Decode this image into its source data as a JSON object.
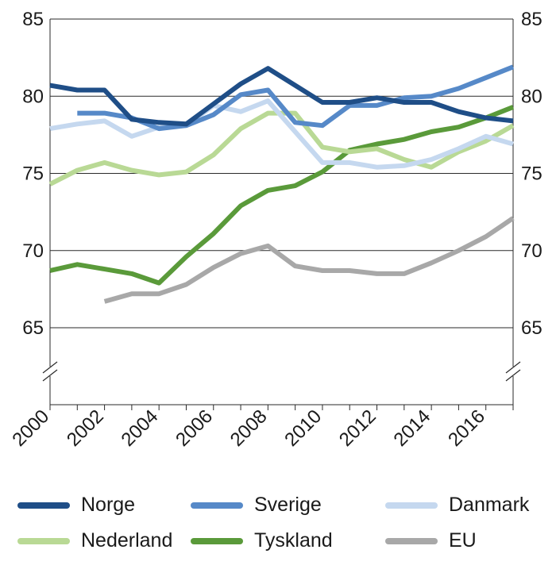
{
  "chart_data": {
    "type": "line",
    "title": "",
    "xlabel": "",
    "ylabel": "",
    "xlim": [
      2000,
      2017
    ],
    "ylim": [
      60,
      85
    ],
    "y_axis_break": true,
    "y_ticks": [
      65,
      70,
      75,
      80,
      85
    ],
    "x_ticks": [
      2000,
      2002,
      2004,
      2006,
      2008,
      2010,
      2012,
      2014,
      2016
    ],
    "grid": true,
    "legend_position": "bottom",
    "series": [
      {
        "name": "Norge",
        "color": "#1f4e87",
        "x": [
          2000,
          2001,
          2002,
          2003,
          2004,
          2005,
          2006,
          2007,
          2008,
          2009,
          2010,
          2011,
          2012,
          2013,
          2014,
          2015,
          2016,
          2017
        ],
        "y": [
          80.7,
          80.4,
          80.4,
          78.5,
          78.3,
          78.2,
          79.5,
          80.8,
          81.8,
          80.7,
          79.6,
          79.6,
          79.9,
          79.6,
          79.6,
          79.0,
          78.6,
          78.4
        ]
      },
      {
        "name": "Sverige",
        "color": "#5689c8",
        "x": [
          2001,
          2002,
          2003,
          2004,
          2005,
          2006,
          2007,
          2008,
          2009,
          2010,
          2011,
          2012,
          2013,
          2014,
          2015,
          2016,
          2017
        ],
        "y": [
          78.9,
          78.9,
          78.6,
          77.9,
          78.1,
          78.8,
          80.1,
          80.4,
          78.3,
          78.1,
          79.4,
          79.4,
          79.9,
          80.0,
          80.5,
          81.2,
          81.9
        ]
      },
      {
        "name": "Danmark",
        "color": "#c5d8ef",
        "x": [
          2000,
          2001,
          2002,
          2003,
          2004,
          2005,
          2006,
          2007,
          2008,
          2009,
          2010,
          2011,
          2012,
          2013,
          2014,
          2015,
          2016,
          2017
        ],
        "y": [
          77.9,
          78.2,
          78.4,
          77.4,
          78.0,
          78.1,
          79.4,
          79.0,
          79.7,
          77.7,
          75.7,
          75.7,
          75.4,
          75.5,
          75.9,
          76.6,
          77.4,
          76.9
        ]
      },
      {
        "name": "Nederland",
        "color": "#b9d995",
        "x": [
          2000,
          2001,
          2002,
          2003,
          2004,
          2005,
          2006,
          2007,
          2008,
          2009,
          2010,
          2011,
          2012,
          2013,
          2014,
          2015,
          2016,
          2017
        ],
        "y": [
          74.3,
          75.2,
          75.7,
          75.2,
          74.9,
          75.1,
          76.2,
          77.9,
          78.9,
          78.9,
          76.7,
          76.4,
          76.6,
          75.9,
          75.4,
          76.4,
          77.1,
          78.1
        ]
      },
      {
        "name": "Tyskland",
        "color": "#5a9a3a",
        "x": [
          2000,
          2001,
          2002,
          2003,
          2004,
          2005,
          2006,
          2007,
          2008,
          2009,
          2010,
          2011,
          2012,
          2013,
          2014,
          2015,
          2016,
          2017
        ],
        "y": [
          68.7,
          69.1,
          68.8,
          68.5,
          67.9,
          69.6,
          71.1,
          72.9,
          73.9,
          74.2,
          75.1,
          76.5,
          76.9,
          77.2,
          77.7,
          78.0,
          78.6,
          79.3
        ]
      },
      {
        "name": "EU",
        "color": "#a8a8a8",
        "x": [
          2002,
          2003,
          2004,
          2005,
          2006,
          2007,
          2008,
          2009,
          2010,
          2011,
          2012,
          2013,
          2014,
          2015,
          2016,
          2017
        ],
        "y": [
          66.7,
          67.2,
          67.2,
          67.8,
          68.9,
          69.8,
          70.3,
          69.0,
          68.7,
          68.7,
          68.5,
          68.5,
          69.2,
          70.0,
          70.9,
          72.1
        ]
      }
    ]
  }
}
